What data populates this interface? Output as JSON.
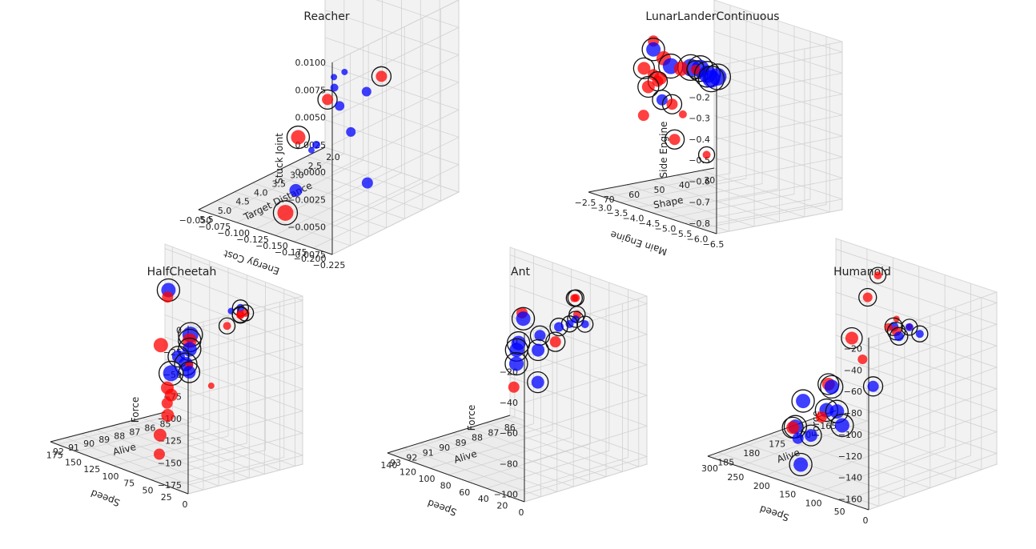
{
  "chart_data": [
    {
      "type": "scatter",
      "title": "Reacher",
      "xlabel": "Energy Cost",
      "ylabel": "Target Distance",
      "zlabel": "Stuck Joint",
      "xlim": [
        -0.225,
        -0.05
      ],
      "ylim": [
        2.0,
        5.5
      ],
      "zlim": [
        -0.0075,
        0.01
      ],
      "xticks": [
        "−0.225",
        "−0.200",
        "−0.175",
        "−0.150",
        "−0.125",
        "−0.100",
        "−0.075",
        "−0.050"
      ],
      "xtick_values": [
        -0.225,
        -0.2,
        -0.175,
        -0.15,
        -0.125,
        -0.1,
        -0.075,
        -0.05
      ],
      "yticks": [
        "2.0",
        "2.5",
        "3.0",
        "3.5",
        "4.0",
        "4.5",
        "5.0",
        "5.5"
      ],
      "ytick_values": [
        2.0,
        2.5,
        3.0,
        3.5,
        4.0,
        4.5,
        5.0,
        5.5
      ],
      "zticks": [
        "−0.0075",
        "−0.0050",
        "−0.0025",
        "0.0000",
        "0.0025",
        "0.0050",
        "0.0075",
        "0.0100"
      ],
      "ztick_values": [
        -0.0075,
        -0.005,
        -0.0025,
        0.0,
        0.0025,
        0.005,
        0.0075,
        0.01
      ],
      "points": [
        {
          "x": -0.08,
          "y": 2.3,
          "z": 0.0095,
          "c": "blue",
          "s": 7,
          "ring": true
        },
        {
          "x": -0.19,
          "y": 3.4,
          "z": 0.0045,
          "c": "red",
          "s": 7,
          "ring": true
        },
        {
          "x": -0.11,
          "y": 3.2,
          "z": 0.0002,
          "c": "red",
          "s": 7,
          "ring": true
        },
        {
          "x": -0.18,
          "y": 3.6,
          "z": 0.0032,
          "c": "blue",
          "s": 6
        },
        {
          "x": -0.14,
          "y": 3.5,
          "z": 0.0008,
          "c": "blue",
          "s": 6
        },
        {
          "x": -0.1,
          "y": 2.8,
          "z": 0.0004,
          "c": "blue",
          "s": 5
        },
        {
          "x": -0.09,
          "y": 2.6,
          "z": 0.0008,
          "c": "blue",
          "s": 4
        },
        {
          "x": -0.085,
          "y": 2.2,
          "z": 0.0005,
          "c": "blue",
          "s": 4
        },
        {
          "x": -0.15,
          "y": 3.4,
          "z": -0.0015,
          "c": "blue",
          "s": 6
        },
        {
          "x": -0.2,
          "y": 4.0,
          "z": -0.004,
          "c": "blue",
          "s": 7
        },
        {
          "x": -0.1,
          "y": 3.8,
          "z": -0.0025,
          "c": "red",
          "s": 9,
          "ring": true
        },
        {
          "x": -0.1,
          "y": 3.3,
          "z": -0.004,
          "c": "blue",
          "s": 5
        },
        {
          "x": -0.07,
          "y": 2.8,
          "z": -0.006,
          "c": "blue",
          "s": 4
        },
        {
          "x": -0.13,
          "y": 4.5,
          "z": -0.0055,
          "c": "blue",
          "s": 8
        },
        {
          "x": -0.14,
          "y": 5.0,
          "z": -0.0065,
          "c": "red",
          "s": 10,
          "ring": true
        }
      ]
    },
    {
      "type": "scatter",
      "title": "LunarLanderContinuous",
      "xlabel": "Main Engine",
      "ylabel": "Shape",
      "zlabel": "Side Engine",
      "xlim": [
        -6.5,
        -2.5
      ],
      "ylim": [
        25,
        75
      ],
      "zlim": [
        -0.85,
        -0.05
      ],
      "xticks": [
        "−6.5",
        "−6.0",
        "−5.5",
        "−5.0",
        "−4.5",
        "−4.0",
        "−3.5",
        "−3.0",
        "−2.5"
      ],
      "xtick_values": [
        -6.5,
        -6.0,
        -5.5,
        -5.0,
        -4.5,
        -4.0,
        -3.5,
        -3.0,
        -2.5
      ],
      "yticks": [
        "30",
        "40",
        "50",
        "60",
        "70"
      ],
      "ytick_values": [
        30,
        40,
        50,
        60,
        70
      ],
      "zticks": [
        "−0.1",
        "−0.2",
        "−0.3",
        "−0.4",
        "−0.5",
        "−0.6",
        "−0.7",
        "−0.8"
      ],
      "ztick_values": [
        -0.1,
        -0.2,
        -0.3,
        -0.4,
        -0.5,
        -0.6,
        -0.7,
        -0.8
      ],
      "points": [
        {
          "x": -6.3,
          "y": 72,
          "z": -0.12,
          "c": "blue",
          "s": 11,
          "ring": true
        },
        {
          "x": -6.1,
          "y": 72,
          "z": -0.14,
          "c": "blue",
          "s": 11,
          "ring": true
        },
        {
          "x": -5.9,
          "y": 71,
          "z": -0.13,
          "c": "blue",
          "s": 11,
          "ring": true
        },
        {
          "x": -5.6,
          "y": 70,
          "z": -0.12,
          "c": "blue",
          "s": 11,
          "ring": true
        },
        {
          "x": -5.3,
          "y": 70,
          "z": -0.13,
          "c": "blue",
          "s": 11,
          "ring": true
        },
        {
          "x": -5.0,
          "y": 70,
          "z": -0.15,
          "c": "red",
          "s": 9
        },
        {
          "x": -4.6,
          "y": 69,
          "z": -0.16,
          "c": "blue",
          "s": 10,
          "ring": true
        },
        {
          "x": -4.3,
          "y": 68,
          "z": -0.14,
          "c": "red",
          "s": 9
        },
        {
          "x": -3.9,
          "y": 67,
          "z": -0.12,
          "c": "blue",
          "s": 9,
          "ring": true
        },
        {
          "x": -3.9,
          "y": 67,
          "z": -0.08,
          "c": "red",
          "s": 7
        },
        {
          "x": -4.2,
          "y": 68,
          "z": -0.24,
          "c": "red",
          "s": 8
        },
        {
          "x": -3.9,
          "y": 67,
          "z": -0.24,
          "c": "red",
          "s": 7
        },
        {
          "x": -3.2,
          "y": 62,
          "z": -0.48,
          "c": "red",
          "s": 7
        },
        {
          "x": -2.9,
          "y": 58,
          "z": -0.28,
          "c": "red",
          "s": 8,
          "ring": true
        },
        {
          "x": -2.8,
          "y": 55,
          "z": -0.38,
          "c": "red",
          "s": 8,
          "ring": true
        },
        {
          "x": -2.7,
          "y": 50,
          "z": -0.37,
          "c": "red",
          "s": 7,
          "ring": true
        },
        {
          "x": -2.6,
          "y": 47,
          "z": -0.47,
          "c": "blue",
          "s": 7,
          "ring": true
        },
        {
          "x": -2.6,
          "y": 43,
          "z": -0.5,
          "c": "red",
          "s": 7,
          "ring": true
        },
        {
          "x": -2.7,
          "y": 40,
          "z": -0.55,
          "c": "red",
          "s": 5
        },
        {
          "x": -2.55,
          "y": 33,
          "z": -0.36,
          "c": "red",
          "s": 6,
          "ring": true
        },
        {
          "x": -2.6,
          "y": 42,
          "z": -0.67,
          "c": "red",
          "s": 7,
          "ring": true
        },
        {
          "x": -2.5,
          "y": 28,
          "z": -0.78,
          "c": "red",
          "s": 5,
          "ring": true
        }
      ]
    },
    {
      "type": "scatter",
      "title": "HalfCheetah",
      "xlabel": "Speed",
      "ylabel": "Alive",
      "zlabel": "Force",
      "xlim": [
        0,
        185
      ],
      "ylim": [
        84.5,
        92
      ],
      "zlim": [
        -185,
        5
      ],
      "xticks": [
        "0",
        "25",
        "50",
        "75",
        "100",
        "125",
        "150",
        "175"
      ],
      "xtick_values": [
        0,
        25,
        50,
        75,
        100,
        125,
        150,
        175
      ],
      "yticks": [
        "85",
        "86",
        "87",
        "88",
        "89",
        "90",
        "91",
        "92"
      ],
      "ytick_values": [
        85,
        86,
        87,
        88,
        89,
        90,
        91,
        92
      ],
      "zticks": [
        "0",
        "−25",
        "−50",
        "−75",
        "−100",
        "−125",
        "−150",
        "−175"
      ],
      "ztick_values": [
        0,
        -25,
        -50,
        -75,
        -100,
        -125,
        -150,
        -175
      ],
      "points": [
        {
          "x": 5,
          "y": 88,
          "z": 0,
          "c": "red",
          "s": 5,
          "ring": true
        },
        {
          "x": 12,
          "y": 88,
          "z": -4,
          "c": "red",
          "s": 5,
          "ring": true
        },
        {
          "x": 18,
          "y": 87.7,
          "z": -8,
          "c": "red",
          "s": 5,
          "ring": true
        },
        {
          "x": 22,
          "y": 87.5,
          "z": -2,
          "c": "blue",
          "s": 5,
          "ring": true
        },
        {
          "x": 40,
          "y": 87.5,
          "z": -28,
          "c": "red",
          "s": 5,
          "ring": true
        },
        {
          "x": 45,
          "y": 87,
          "z": -15,
          "c": "blue",
          "s": 4
        },
        {
          "x": 10,
          "y": 90,
          "z": -75,
          "c": "red",
          "s": 4
        },
        {
          "x": 60,
          "y": 89,
          "z": -72,
          "c": "red",
          "s": 5
        },
        {
          "x": 80,
          "y": 88,
          "z": -55,
          "c": "red",
          "s": 9,
          "ring": true
        },
        {
          "x": 80,
          "y": 88,
          "z": -65,
          "c": "blue",
          "s": 9,
          "ring": true
        },
        {
          "x": 75,
          "y": 88.5,
          "z": -78,
          "c": "blue",
          "s": 9,
          "ring": true
        },
        {
          "x": 60,
          "y": 89,
          "z": -80,
          "c": "blue",
          "s": 8,
          "ring": true
        },
        {
          "x": 95,
          "y": 88,
          "z": -78,
          "c": "blue",
          "s": 8,
          "ring": true
        },
        {
          "x": 120,
          "y": 86,
          "z": -70,
          "c": "blue",
          "s": 10,
          "ring": true
        },
        {
          "x": 105,
          "y": 88,
          "z": -100,
          "c": "blue",
          "s": 10,
          "ring": true
        },
        {
          "x": 170,
          "y": 85,
          "z": -40,
          "c": "blue",
          "s": 9,
          "ring": true
        },
        {
          "x": 165,
          "y": 85.3,
          "z": -45,
          "c": "red",
          "s": 7
        },
        {
          "x": 170,
          "y": 85.5,
          "z": -100,
          "c": "red",
          "s": 9
        },
        {
          "x": 110,
          "y": 88,
          "z": -118,
          "c": "red",
          "s": 8
        },
        {
          "x": 115,
          "y": 87.5,
          "z": -130,
          "c": "red",
          "s": 8
        },
        {
          "x": 100,
          "y": 88.5,
          "z": -130,
          "c": "red",
          "s": 7
        },
        {
          "x": 130,
          "y": 87,
          "z": -160,
          "c": "red",
          "s": 8
        },
        {
          "x": 130,
          "y": 87.5,
          "z": -180,
          "c": "red",
          "s": 8
        },
        {
          "x": 90,
          "y": 89.5,
          "z": -180,
          "c": "red",
          "s": 7
        }
      ]
    },
    {
      "type": "scatter",
      "title": "Ant",
      "xlabel": "Speed",
      "ylabel": "Alive",
      "zlabel": "Force",
      "xlim": [
        0,
        145
      ],
      "ylim": [
        85.5,
        93
      ],
      "zlim": [
        -105,
        5
      ],
      "xticks": [
        "0",
        "20",
        "40",
        "60",
        "80",
        "100",
        "120",
        "140"
      ],
      "xtick_values": [
        0,
        20,
        40,
        60,
        80,
        100,
        120,
        140
      ],
      "yticks": [
        "86",
        "87",
        "88",
        "89",
        "90",
        "91",
        "92",
        "93"
      ],
      "ytick_values": [
        86,
        87,
        88,
        89,
        90,
        91,
        92,
        93
      ],
      "zticks": [
        "0",
        "−20",
        "−40",
        "−60",
        "−80",
        "−100"
      ],
      "ztick_values": [
        0,
        -20,
        -40,
        -60,
        -80,
        -100
      ],
      "points": [
        {
          "x": 5,
          "y": 89,
          "z": -3,
          "c": "blue",
          "s": 5,
          "ring": true
        },
        {
          "x": 15,
          "y": 89,
          "z": -2,
          "c": "blue",
          "s": 5,
          "ring": true
        },
        {
          "x": 22,
          "y": 88.5,
          "z": -2,
          "c": "red",
          "s": 5,
          "ring": true
        },
        {
          "x": 25,
          "y": 88.5,
          "z": 8,
          "c": "red",
          "s": 5,
          "ring": true
        },
        {
          "x": 32,
          "y": 88,
          "z": 5,
          "c": "red",
          "s": 5,
          "ring": true
        },
        {
          "x": 30,
          "y": 88.5,
          "z": -10,
          "c": "blue",
          "s": 5,
          "ring": true
        },
        {
          "x": 50,
          "y": 88,
          "z": -18,
          "c": "blue",
          "s": 6,
          "ring": true
        },
        {
          "x": 45,
          "y": 88.5,
          "z": -25,
          "c": "red",
          "s": 7,
          "ring": true
        },
        {
          "x": 70,
          "y": 88,
          "z": -28,
          "c": "blue",
          "s": 7,
          "ring": true
        },
        {
          "x": 72,
          "y": 88,
          "z": -38,
          "c": "blue",
          "s": 8,
          "ring": true
        },
        {
          "x": 55,
          "y": 89,
          "z": -52,
          "c": "blue",
          "s": 8,
          "ring": true
        },
        {
          "x": 105,
          "y": 87,
          "z": -28,
          "c": "blue",
          "s": 9,
          "ring": true
        },
        {
          "x": 115,
          "y": 86.5,
          "z": -28,
          "c": "red",
          "s": 7
        },
        {
          "x": 95,
          "y": 88,
          "z": -52,
          "c": "blue",
          "s": 9,
          "ring": true
        },
        {
          "x": 110,
          "y": 87,
          "z": -45,
          "c": "blue",
          "s": 9,
          "ring": true
        },
        {
          "x": 112,
          "y": 87,
          "z": -50,
          "c": "blue",
          "s": 9,
          "ring": true
        },
        {
          "x": 115,
          "y": 87,
          "z": -75,
          "c": "red",
          "s": 7
        }
      ]
    },
    {
      "type": "scatter",
      "title": "Humanoid",
      "xlabel": "Speed",
      "ylabel": "Alive",
      "zlabel": "Force",
      "xlim": [
        0,
        310
      ],
      "ylim": [
        162,
        187
      ],
      "zlim": [
        -170,
        -10
      ],
      "xticks": [
        "0",
        "50",
        "100",
        "150",
        "200",
        "250",
        "300"
      ],
      "xtick_values": [
        0,
        50,
        100,
        150,
        200,
        250,
        300
      ],
      "yticks": [
        "165",
        "170",
        "175",
        "180",
        "185"
      ],
      "ytick_values": [
        165,
        170,
        175,
        180,
        185
      ],
      "zticks": [
        "−20",
        "−40",
        "−60",
        "−80",
        "−100",
        "−120",
        "−140",
        "−160"
      ],
      "ztick_values": [
        -20,
        -40,
        -60,
        -80,
        -100,
        -120,
        -140,
        -160
      ],
      "points": [
        {
          "x": 20,
          "y": 175,
          "z": -30,
          "c": "blue",
          "s": 5,
          "ring": true
        },
        {
          "x": 40,
          "y": 175,
          "z": -27,
          "c": "blue",
          "s": 5,
          "ring": true
        },
        {
          "x": 50,
          "y": 174,
          "z": -30,
          "c": "red",
          "s": 4
        },
        {
          "x": 55,
          "y": 176,
          "z": -20,
          "c": "red",
          "s": 4
        },
        {
          "x": 70,
          "y": 174,
          "z": -42,
          "c": "blue",
          "s": 6,
          "ring": true
        },
        {
          "x": 75,
          "y": 174,
          "z": -38,
          "c": "red",
          "s": 6,
          "ring": true
        },
        {
          "x": 90,
          "y": 173,
          "z": -38,
          "c": "blue",
          "s": 6,
          "ring": true
        },
        {
          "x": 100,
          "y": 173,
          "z": -40,
          "c": "red",
          "s": 5
        },
        {
          "x": 150,
          "y": 170,
          "z": -5,
          "c": "red",
          "s": 5,
          "ring": true
        },
        {
          "x": 150,
          "y": 172,
          "z": -22,
          "c": "red",
          "s": 6,
          "ring": true
        },
        {
          "x": 100,
          "y": 176,
          "z": -90,
          "c": "blue",
          "s": 7,
          "ring": true
        },
        {
          "x": 150,
          "y": 173,
          "z": -78,
          "c": "red",
          "s": 6
        },
        {
          "x": 220,
          "y": 168,
          "z": -78,
          "c": "red",
          "s": 8,
          "ring": true
        },
        {
          "x": 265,
          "y": 168,
          "z": -128,
          "c": "red",
          "s": 8,
          "ring": true
        },
        {
          "x": 170,
          "y": 177,
          "z": -100,
          "c": "blue",
          "s": 9,
          "ring": true
        },
        {
          "x": 150,
          "y": 178,
          "z": -118,
          "c": "blue",
          "s": 9,
          "ring": true
        },
        {
          "x": 170,
          "y": 178,
          "z": -120,
          "c": "blue",
          "s": 9,
          "ring": true
        },
        {
          "x": 180,
          "y": 178,
          "z": -128,
          "c": "red",
          "s": 7
        },
        {
          "x": 130,
          "y": 179,
          "z": -126,
          "c": "blue",
          "s": 9,
          "ring": true
        },
        {
          "x": 225,
          "y": 177,
          "z": -122,
          "c": "blue",
          "s": 9,
          "ring": true
        },
        {
          "x": 190,
          "y": 179,
          "z": -145,
          "c": "blue",
          "s": 8,
          "ring": true
        },
        {
          "x": 230,
          "y": 178,
          "z": -145,
          "c": "blue",
          "s": 9,
          "ring": true
        },
        {
          "x": 245,
          "y": 177,
          "z": -150,
          "c": "red",
          "s": 8,
          "ring": true
        },
        {
          "x": 225,
          "y": 178,
          "z": -155,
          "c": "blue",
          "s": 7
        },
        {
          "x": 200,
          "y": 180,
          "z": -172,
          "c": "blue",
          "s": 9,
          "ring": true
        }
      ]
    }
  ]
}
